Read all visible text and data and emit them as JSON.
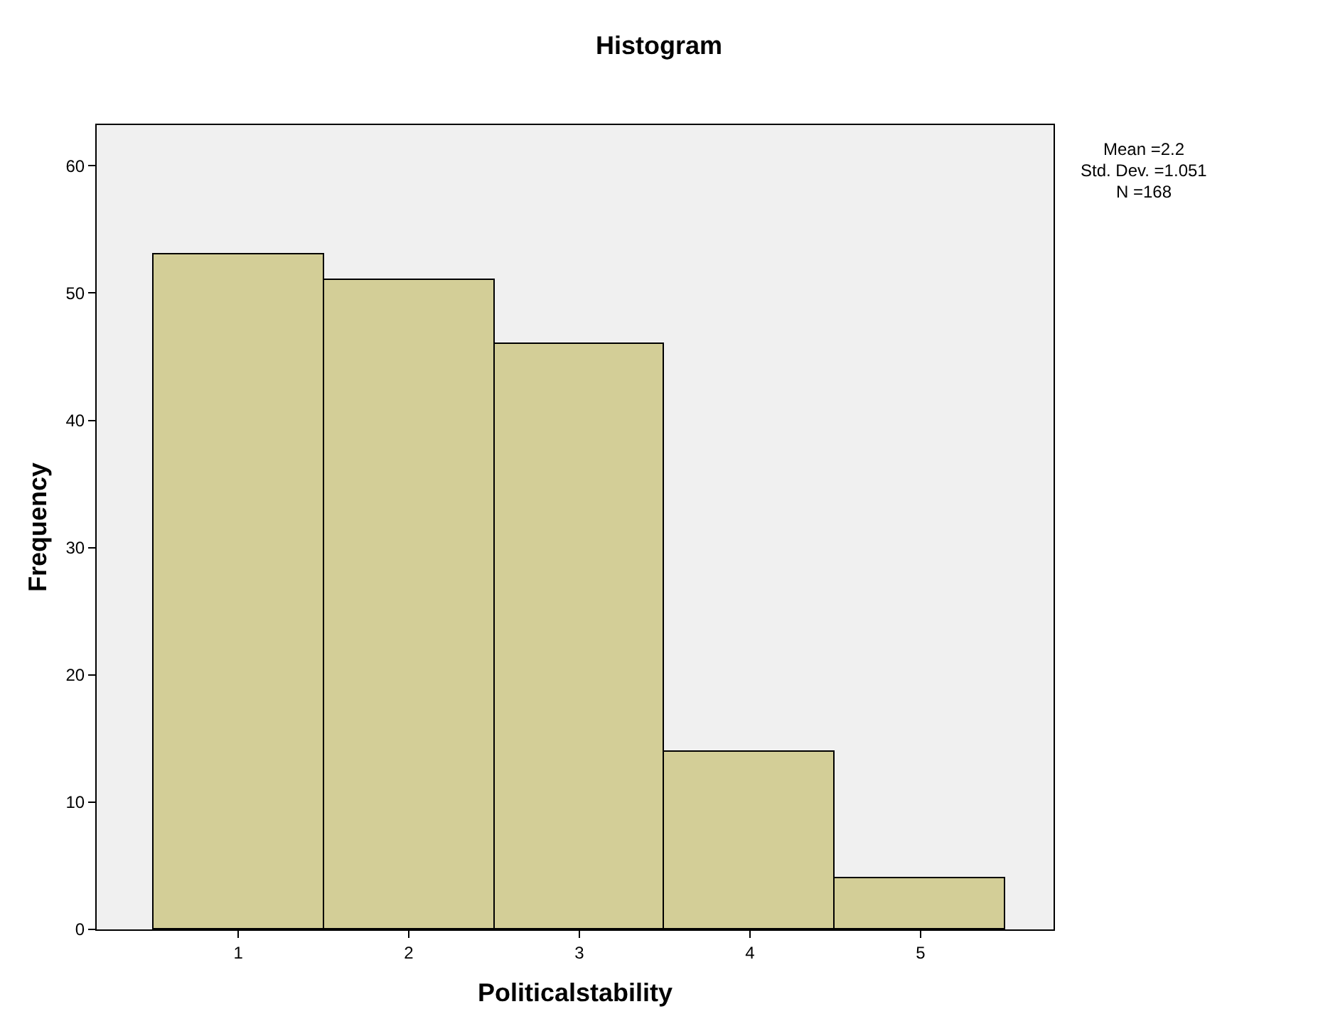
{
  "chart_data": {
    "type": "histogram",
    "title": "Histogram",
    "xlabel": "Politicalstability",
    "ylabel": "Frequency",
    "bins": [
      0.5,
      1.5,
      2.5,
      3.5,
      4.5,
      5.5
    ],
    "values": [
      53,
      51,
      46,
      14,
      4
    ],
    "color": "#d3ce97",
    "xlim": [
      0.17,
      5.78
    ],
    "xticks": [
      1,
      2,
      3,
      4,
      5
    ],
    "ylim": [
      0,
      63.2
    ],
    "yticks": [
      0,
      10,
      20,
      30,
      40,
      50,
      60
    ],
    "grid": false,
    "annotations": [
      "Mean =2.2",
      "Std. Dev. =1.051",
      "N =168"
    ]
  }
}
